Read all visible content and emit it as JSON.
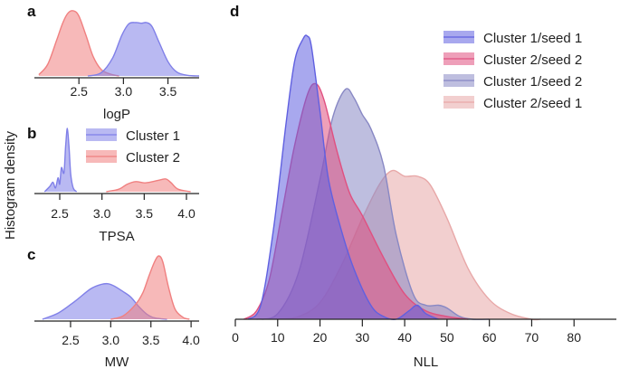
{
  "figure": {
    "shared_ylabel": "Histogram density"
  },
  "chart_data": [
    {
      "panel": "a",
      "type": "area",
      "xlabel": "logP",
      "xticks": [
        2.5,
        3.0,
        3.5
      ],
      "tick_labels": [
        "2.5",
        "3.0",
        "3.5"
      ],
      "xlim": [
        2.0,
        3.85
      ],
      "grid": false,
      "series": [
        {
          "name": "Cluster 2",
          "color": "#f08080",
          "x": [
            2.05,
            2.15,
            2.25,
            2.32,
            2.38,
            2.44,
            2.5,
            2.58,
            2.66,
            2.75,
            2.85,
            2.95
          ],
          "y": [
            0.02,
            0.18,
            0.55,
            0.82,
            0.97,
            1.0,
            0.92,
            0.62,
            0.3,
            0.1,
            0.03,
            0.0
          ]
        },
        {
          "name": "Cluster 1",
          "color": "#8080e8",
          "x": [
            2.6,
            2.75,
            2.88,
            2.98,
            3.06,
            3.14,
            3.2,
            3.26,
            3.32,
            3.4,
            3.5,
            3.6,
            3.72,
            3.85
          ],
          "y": [
            0.0,
            0.05,
            0.28,
            0.62,
            0.8,
            0.82,
            0.81,
            0.82,
            0.76,
            0.52,
            0.22,
            0.06,
            0.01,
            0.0
          ]
        }
      ]
    },
    {
      "panel": "b",
      "type": "area",
      "xlabel": "TPSA",
      "xticks": [
        2.5,
        3.0,
        3.5,
        4.0
      ],
      "tick_labels": [
        "2.5",
        "3.0",
        "3.5",
        "4.0"
      ],
      "xlim": [
        2.2,
        4.15
      ],
      "grid": false,
      "legend": {
        "position": "top-right",
        "entries": [
          "Cluster 1",
          "Cluster 2"
        ]
      },
      "series": [
        {
          "name": "Cluster 1",
          "color": "#8080e8",
          "x": [
            2.32,
            2.38,
            2.42,
            2.45,
            2.48,
            2.5,
            2.52,
            2.55,
            2.57,
            2.59,
            2.61,
            2.63,
            2.66,
            2.7
          ],
          "y": [
            0.0,
            0.08,
            0.15,
            0.06,
            0.22,
            0.12,
            0.38,
            0.3,
            0.72,
            1.0,
            0.7,
            0.28,
            0.06,
            0.0
          ]
        },
        {
          "name": "Cluster 2",
          "color": "#f08080",
          "x": [
            3.05,
            3.2,
            3.3,
            3.4,
            3.5,
            3.6,
            3.7,
            3.76,
            3.82,
            3.9,
            4.05
          ],
          "y": [
            0.0,
            0.04,
            0.12,
            0.16,
            0.14,
            0.16,
            0.19,
            0.2,
            0.14,
            0.04,
            0.0
          ]
        }
      ]
    },
    {
      "panel": "c",
      "type": "area",
      "xlabel": "MW",
      "xticks": [
        2.5,
        3.0,
        3.5,
        4.0
      ],
      "tick_labels": [
        "2.5",
        "3.0",
        "3.5",
        "4.0"
      ],
      "xlim": [
        2.05,
        4.1
      ],
      "grid": false,
      "series": [
        {
          "name": "Cluster 1",
          "color": "#8080e8",
          "x": [
            2.15,
            2.35,
            2.55,
            2.75,
            2.88,
            2.97,
            3.05,
            3.15,
            3.25,
            3.35,
            3.45,
            3.55,
            3.7
          ],
          "y": [
            0.0,
            0.1,
            0.28,
            0.48,
            0.55,
            0.56,
            0.52,
            0.44,
            0.35,
            0.2,
            0.08,
            0.02,
            0.0
          ]
        },
        {
          "name": "Cluster 2",
          "color": "#f08080",
          "x": [
            3.0,
            3.15,
            3.3,
            3.4,
            3.48,
            3.55,
            3.6,
            3.65,
            3.72,
            3.8,
            3.9,
            3.98
          ],
          "y": [
            0.0,
            0.05,
            0.22,
            0.42,
            0.7,
            0.92,
            1.0,
            0.9,
            0.5,
            0.16,
            0.03,
            0.0
          ]
        }
      ]
    },
    {
      "panel": "d",
      "type": "area",
      "xlabel": "NLL",
      "xticks": [
        0,
        10,
        20,
        30,
        40,
        50,
        60,
        70,
        80
      ],
      "tick_labels": [
        "0",
        "10",
        "20",
        "30",
        "40",
        "50",
        "60",
        "70",
        "80"
      ],
      "xlim": [
        0,
        90
      ],
      "grid": false,
      "legend": {
        "position": "top-right",
        "entries": [
          "Cluster 1/seed 1",
          "Cluster 2/seed 2",
          "Cluster 1/seed 2",
          "Cluster 2/seed 1"
        ]
      },
      "series": [
        {
          "name": "Cluster 2/seed 1",
          "color": "#e8a8a8",
          "x": [
            10,
            15,
            20,
            25,
            30,
            34,
            37,
            40,
            43,
            46,
            50,
            55,
            60,
            65,
            70,
            72
          ],
          "y": [
            0.0,
            0.01,
            0.06,
            0.19,
            0.36,
            0.48,
            0.53,
            0.51,
            0.51,
            0.48,
            0.36,
            0.18,
            0.07,
            0.02,
            0.0,
            0.0
          ]
        },
        {
          "name": "Cluster 1/seed 2",
          "color": "#8888c4",
          "x": [
            5,
            10,
            15,
            20,
            23,
            26,
            28,
            30,
            32,
            35,
            38,
            42,
            45,
            48,
            50,
            53,
            56,
            60
          ],
          "y": [
            0.0,
            0.02,
            0.17,
            0.5,
            0.72,
            0.82,
            0.79,
            0.73,
            0.68,
            0.55,
            0.3,
            0.09,
            0.05,
            0.05,
            0.04,
            0.01,
            0.0,
            0.0
          ]
        },
        {
          "name": "Cluster 2/seed 2",
          "color": "#e05080",
          "x": [
            2,
            5,
            8,
            11,
            14,
            17,
            19,
            21,
            24,
            27,
            30,
            35,
            40,
            45,
            50,
            55
          ],
          "y": [
            0.0,
            0.03,
            0.14,
            0.38,
            0.62,
            0.8,
            0.84,
            0.78,
            0.6,
            0.45,
            0.37,
            0.22,
            0.09,
            0.03,
            0.01,
            0.0
          ]
        },
        {
          "name": "Cluster 1/seed 1",
          "color": "#6060e0",
          "x": [
            3,
            6,
            9,
            12,
            14,
            16,
            17,
            18,
            20,
            22,
            25,
            28,
            32,
            35,
            38,
            41,
            43,
            45,
            48
          ],
          "y": [
            0.0,
            0.05,
            0.32,
            0.7,
            0.92,
            1.0,
            1.01,
            0.97,
            0.74,
            0.5,
            0.32,
            0.18,
            0.05,
            0.01,
            0.0,
            0.03,
            0.05,
            0.02,
            0.0
          ]
        }
      ]
    }
  ]
}
